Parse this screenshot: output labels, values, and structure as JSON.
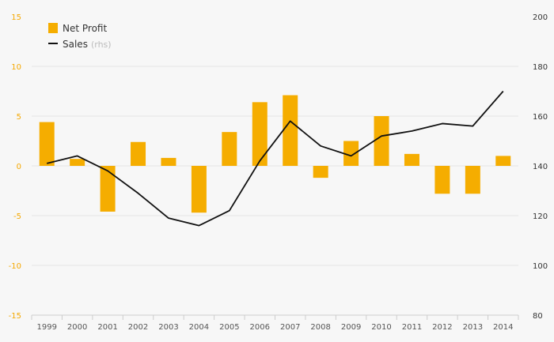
{
  "chart_data": {
    "type": "bar",
    "categories": [
      "1999",
      "2000",
      "2001",
      "2002",
      "2003",
      "2004",
      "2005",
      "2006",
      "2007",
      "2008",
      "2009",
      "2010",
      "2011",
      "2012",
      "2013",
      "2014"
    ],
    "series": [
      {
        "name": "Net Profit",
        "type": "bar",
        "axis": "left",
        "color": "#f5ad00",
        "values": [
          4.4,
          0.7,
          -4.6,
          2.4,
          0.8,
          -4.7,
          3.4,
          6.4,
          7.1,
          -1.2,
          2.5,
          5.0,
          1.2,
          -2.8,
          -2.8,
          1.0
        ]
      },
      {
        "name": "Sales",
        "name_suffix": "(rhs)",
        "type": "line",
        "axis": "right",
        "color": "#111111",
        "values": [
          141,
          144,
          138,
          129,
          119,
          116,
          122,
          142,
          158,
          148,
          144,
          152,
          154,
          157,
          156,
          170
        ]
      }
    ],
    "y_left": {
      "ylim": [
        -15,
        15
      ],
      "ticks": [
        "15",
        "10",
        "5",
        "0",
        "-5",
        "-10",
        "-15"
      ],
      "color": "#f5a800"
    },
    "y_right": {
      "ylim": [
        80,
        200
      ],
      "ticks": [
        "200",
        "180",
        "160",
        "140",
        "120",
        "100",
        "80"
      ]
    },
    "grid": true,
    "legend": "top-left"
  }
}
